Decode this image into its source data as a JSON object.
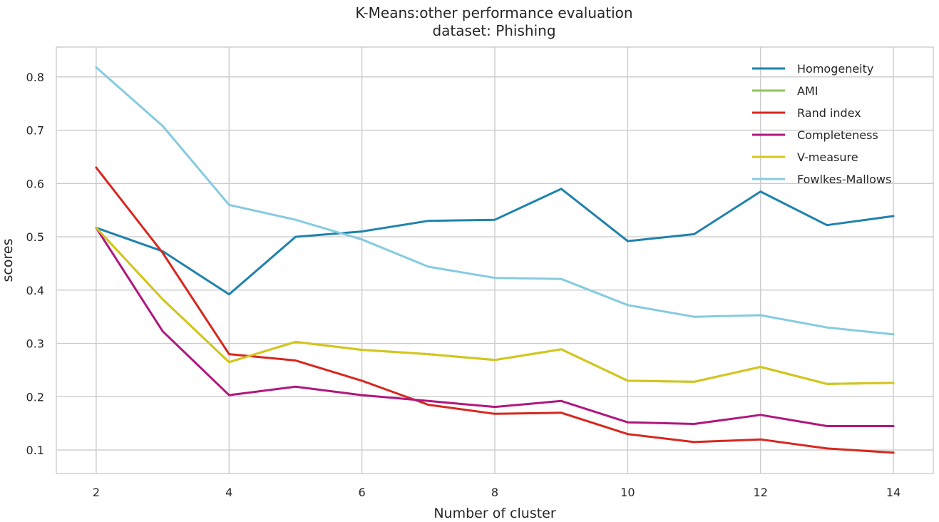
{
  "chart_data": {
    "type": "line",
    "title": "K-Means:other performance evaluation",
    "subtitle": "dataset: Phishing",
    "xlabel": "Number of cluster",
    "ylabel": "scores",
    "xlim": [
      1.4,
      14.6
    ],
    "ylim": [
      0.056,
      0.856
    ],
    "xticks": [
      2,
      4,
      6,
      8,
      10,
      12,
      14
    ],
    "yticks": [
      0.1,
      0.2,
      0.3,
      0.4,
      0.5,
      0.6,
      0.7,
      0.8
    ],
    "grid": true,
    "legend_position": "top-right",
    "x": [
      2,
      3,
      4,
      5,
      6,
      7,
      8,
      9,
      10,
      11,
      12,
      13,
      14
    ],
    "series": [
      {
        "name": "Homogeneity",
        "color": "#1f82ad",
        "values": [
          0.517,
          0.473,
          0.392,
          0.5,
          0.51,
          0.53,
          0.532,
          0.59,
          0.492,
          0.505,
          0.585,
          0.522,
          0.539
        ]
      },
      {
        "name": "AMI",
        "color": "#8fc45f",
        "values": [
          0.517,
          0.383,
          0.265,
          0.303,
          0.288,
          0.28,
          0.269,
          0.289,
          0.23,
          0.228,
          0.256,
          0.224,
          0.226
        ]
      },
      {
        "name": "Rand index",
        "color": "#d7271e",
        "values": [
          0.63,
          0.47,
          0.28,
          0.268,
          0.23,
          0.185,
          0.168,
          0.17,
          0.13,
          0.115,
          0.12,
          0.103,
          0.095
        ]
      },
      {
        "name": "Completeness",
        "color": "#b0177e",
        "values": [
          0.517,
          0.323,
          0.203,
          0.219,
          0.203,
          0.192,
          0.181,
          0.192,
          0.152,
          0.149,
          0.166,
          0.145,
          0.145
        ]
      },
      {
        "name": "V-measure",
        "color": "#d4c61b",
        "values": [
          0.517,
          0.383,
          0.265,
          0.303,
          0.288,
          0.28,
          0.269,
          0.289,
          0.23,
          0.228,
          0.256,
          0.224,
          0.226
        ]
      },
      {
        "name": "Fowlkes-Mallows",
        "color": "#86cbe0",
        "values": [
          0.818,
          0.708,
          0.56,
          0.532,
          0.495,
          0.444,
          0.423,
          0.421,
          0.372,
          0.35,
          0.353,
          0.33,
          0.317
        ]
      }
    ]
  }
}
